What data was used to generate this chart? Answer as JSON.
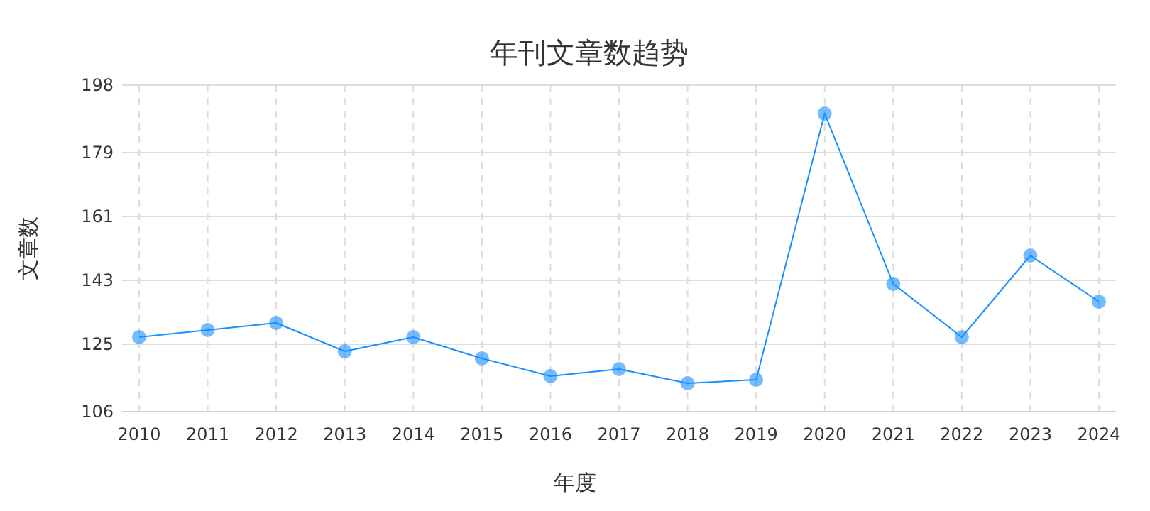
{
  "chart_data": {
    "type": "line",
    "title": "年刊文章数趋势",
    "xlabel": "年度",
    "ylabel": "文章数",
    "categories": [
      "2010",
      "2011",
      "2012",
      "2013",
      "2014",
      "2015",
      "2016",
      "2017",
      "2018",
      "2019",
      "2020",
      "2021",
      "2022",
      "2023",
      "2024"
    ],
    "series": [
      {
        "color": "#1890ff",
        "values": [
          127,
          129,
          131,
          123,
          127,
          121,
          116,
          118,
          114,
          115,
          190,
          142,
          127,
          150,
          137
        ]
      }
    ],
    "ylim": [
      106,
      198
    ],
    "yticks": [
      106,
      125,
      143,
      161,
      179,
      198
    ],
    "grid": true,
    "marker": "circle",
    "line_style": "solid"
  }
}
